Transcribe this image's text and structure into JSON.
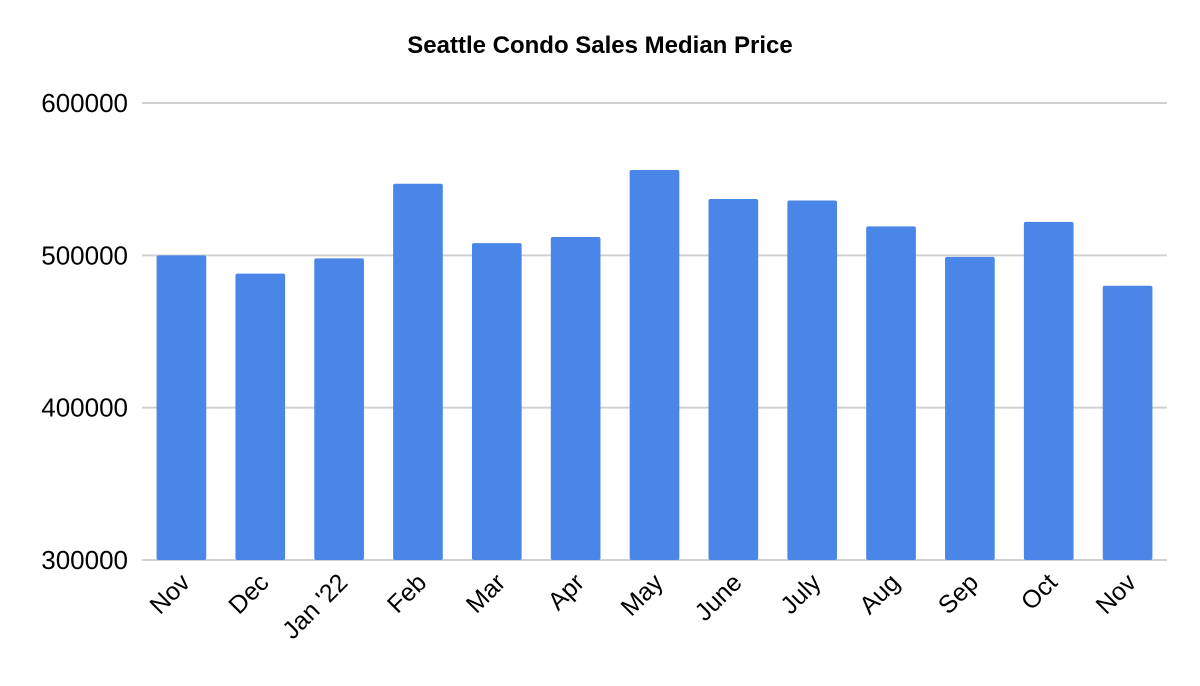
{
  "chart_data": {
    "type": "bar",
    "title": "Seattle Condo Sales Median Price",
    "xlabel": "",
    "ylabel": "",
    "categories": [
      "Nov",
      "Dec",
      "Jan '22",
      "Feb",
      "Mar",
      "Apr",
      "May",
      "June",
      "July",
      "Aug",
      "Sep",
      "Oct",
      "Nov"
    ],
    "values": [
      500000,
      488000,
      498000,
      547000,
      508000,
      512000,
      556000,
      537000,
      536000,
      519000,
      499000,
      522000,
      480000
    ],
    "ylim": [
      300000,
      600000
    ],
    "yticks": [
      "300000",
      "400000",
      "500000",
      "600000"
    ],
    "grid": true,
    "legend": "none",
    "bar_color": "#4a86e8",
    "grid_color": "#d0d0d0"
  }
}
